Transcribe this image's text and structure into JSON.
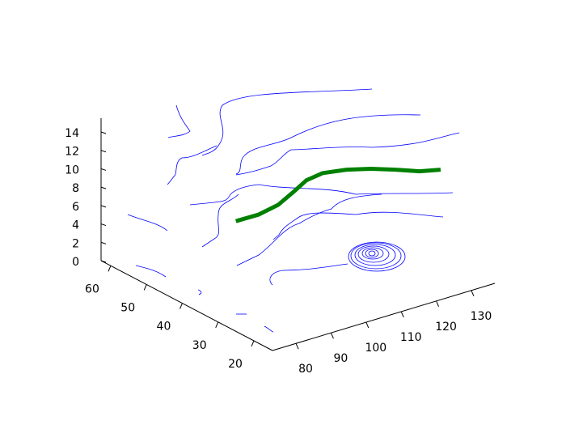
{
  "chart_data": {
    "type": "line3d",
    "xlim": [
      73.3,
      136.7
    ],
    "ylim": [
      14.8,
      62.7
    ],
    "zlim": [
      0,
      15.5
    ],
    "xticks": [
      80,
      90,
      100,
      110,
      120,
      130
    ],
    "yticks": [
      20,
      30,
      40,
      50,
      60
    ],
    "zticks": [
      0,
      2,
      4,
      6,
      8,
      10,
      12,
      14
    ],
    "series": [
      {
        "color": "#008000",
        "x": [
          79.6,
          85.9,
          92.9,
          100.6,
          106.4,
          111.9,
          117.4,
          122.1,
          126.2,
          130.0,
          134.4
        ],
        "y": [
          31.2,
          31.1,
          32.4,
          35.4,
          37.8,
          38.6,
          37.3,
          35.1,
          32.3,
          29.3,
          27.7
        ],
        "z": [
          10,
          10,
          10,
          10,
          10,
          10,
          10,
          10,
          10,
          10,
          10
        ]
      }
    ]
  }
}
